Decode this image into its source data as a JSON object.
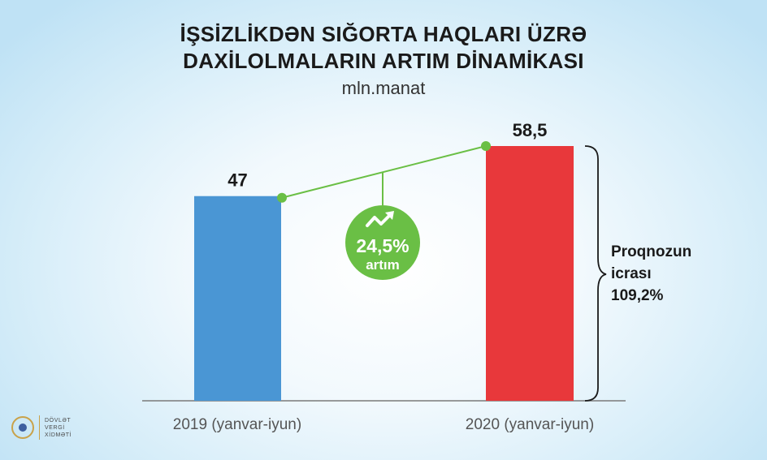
{
  "chart_data": {
    "type": "bar",
    "title_lines": [
      "İŞSİZLİKDƏN SIĞORTA HAQLARI ÜZRƏ",
      "DAXİLOLMALARIN ARTIM DİNAMİKASI"
    ],
    "subtitle": "mln.manat",
    "categories": [
      "2019 (yanvar-iyun)",
      "2020 (yanvar-iyun)"
    ],
    "values": [
      47,
      58.5
    ],
    "value_labels": [
      "47",
      "58,5"
    ],
    "ylim": [
      0,
      60
    ],
    "grid": false,
    "bar_colors": [
      "#4a96d4",
      "#e8383b"
    ],
    "growth": {
      "percent": "24,5%",
      "label": "artım",
      "color": "#6abf45"
    },
    "annotation": {
      "lines": [
        "Proqnozun",
        "icrası",
        "109,2%"
      ]
    }
  },
  "logo": {
    "lines": [
      "DÖVLƏT",
      "VERGİ",
      "XİDMƏTİ"
    ]
  }
}
